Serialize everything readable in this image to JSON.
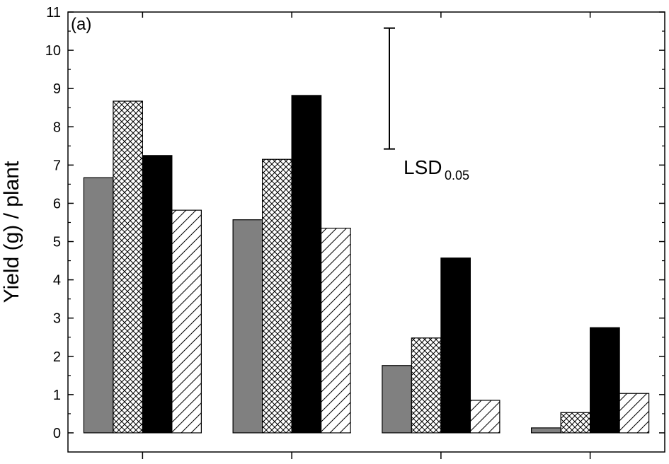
{
  "chart_data": {
    "type": "bar",
    "title": "",
    "panel_label": "(a)",
    "xlabel": "",
    "ylabel": "Yield (g) / plant",
    "ylim": [
      -0.5,
      11
    ],
    "yticks": [
      0,
      1,
      2,
      3,
      4,
      5,
      6,
      7,
      8,
      9,
      10,
      11
    ],
    "categories": [
      "",
      "",
      "",
      ""
    ],
    "series": [
      {
        "fill": "gray",
        "color": "#808080",
        "values": [
          6.67,
          5.57,
          1.76,
          0.13
        ]
      },
      {
        "fill": "crosshatch",
        "color": "#ffffff",
        "values": [
          8.67,
          7.15,
          2.48,
          0.53
        ]
      },
      {
        "fill": "black",
        "color": "#000000",
        "values": [
          7.25,
          8.82,
          4.57,
          2.75
        ]
      },
      {
        "fill": "diagonal",
        "color": "#ffffff",
        "values": [
          5.82,
          5.35,
          0.85,
          1.03
        ]
      }
    ],
    "lsd": {
      "label": "LSD",
      "subscript": "0.05",
      "low": 7.42,
      "high": 10.58
    },
    "grid": false,
    "legend": "none"
  }
}
